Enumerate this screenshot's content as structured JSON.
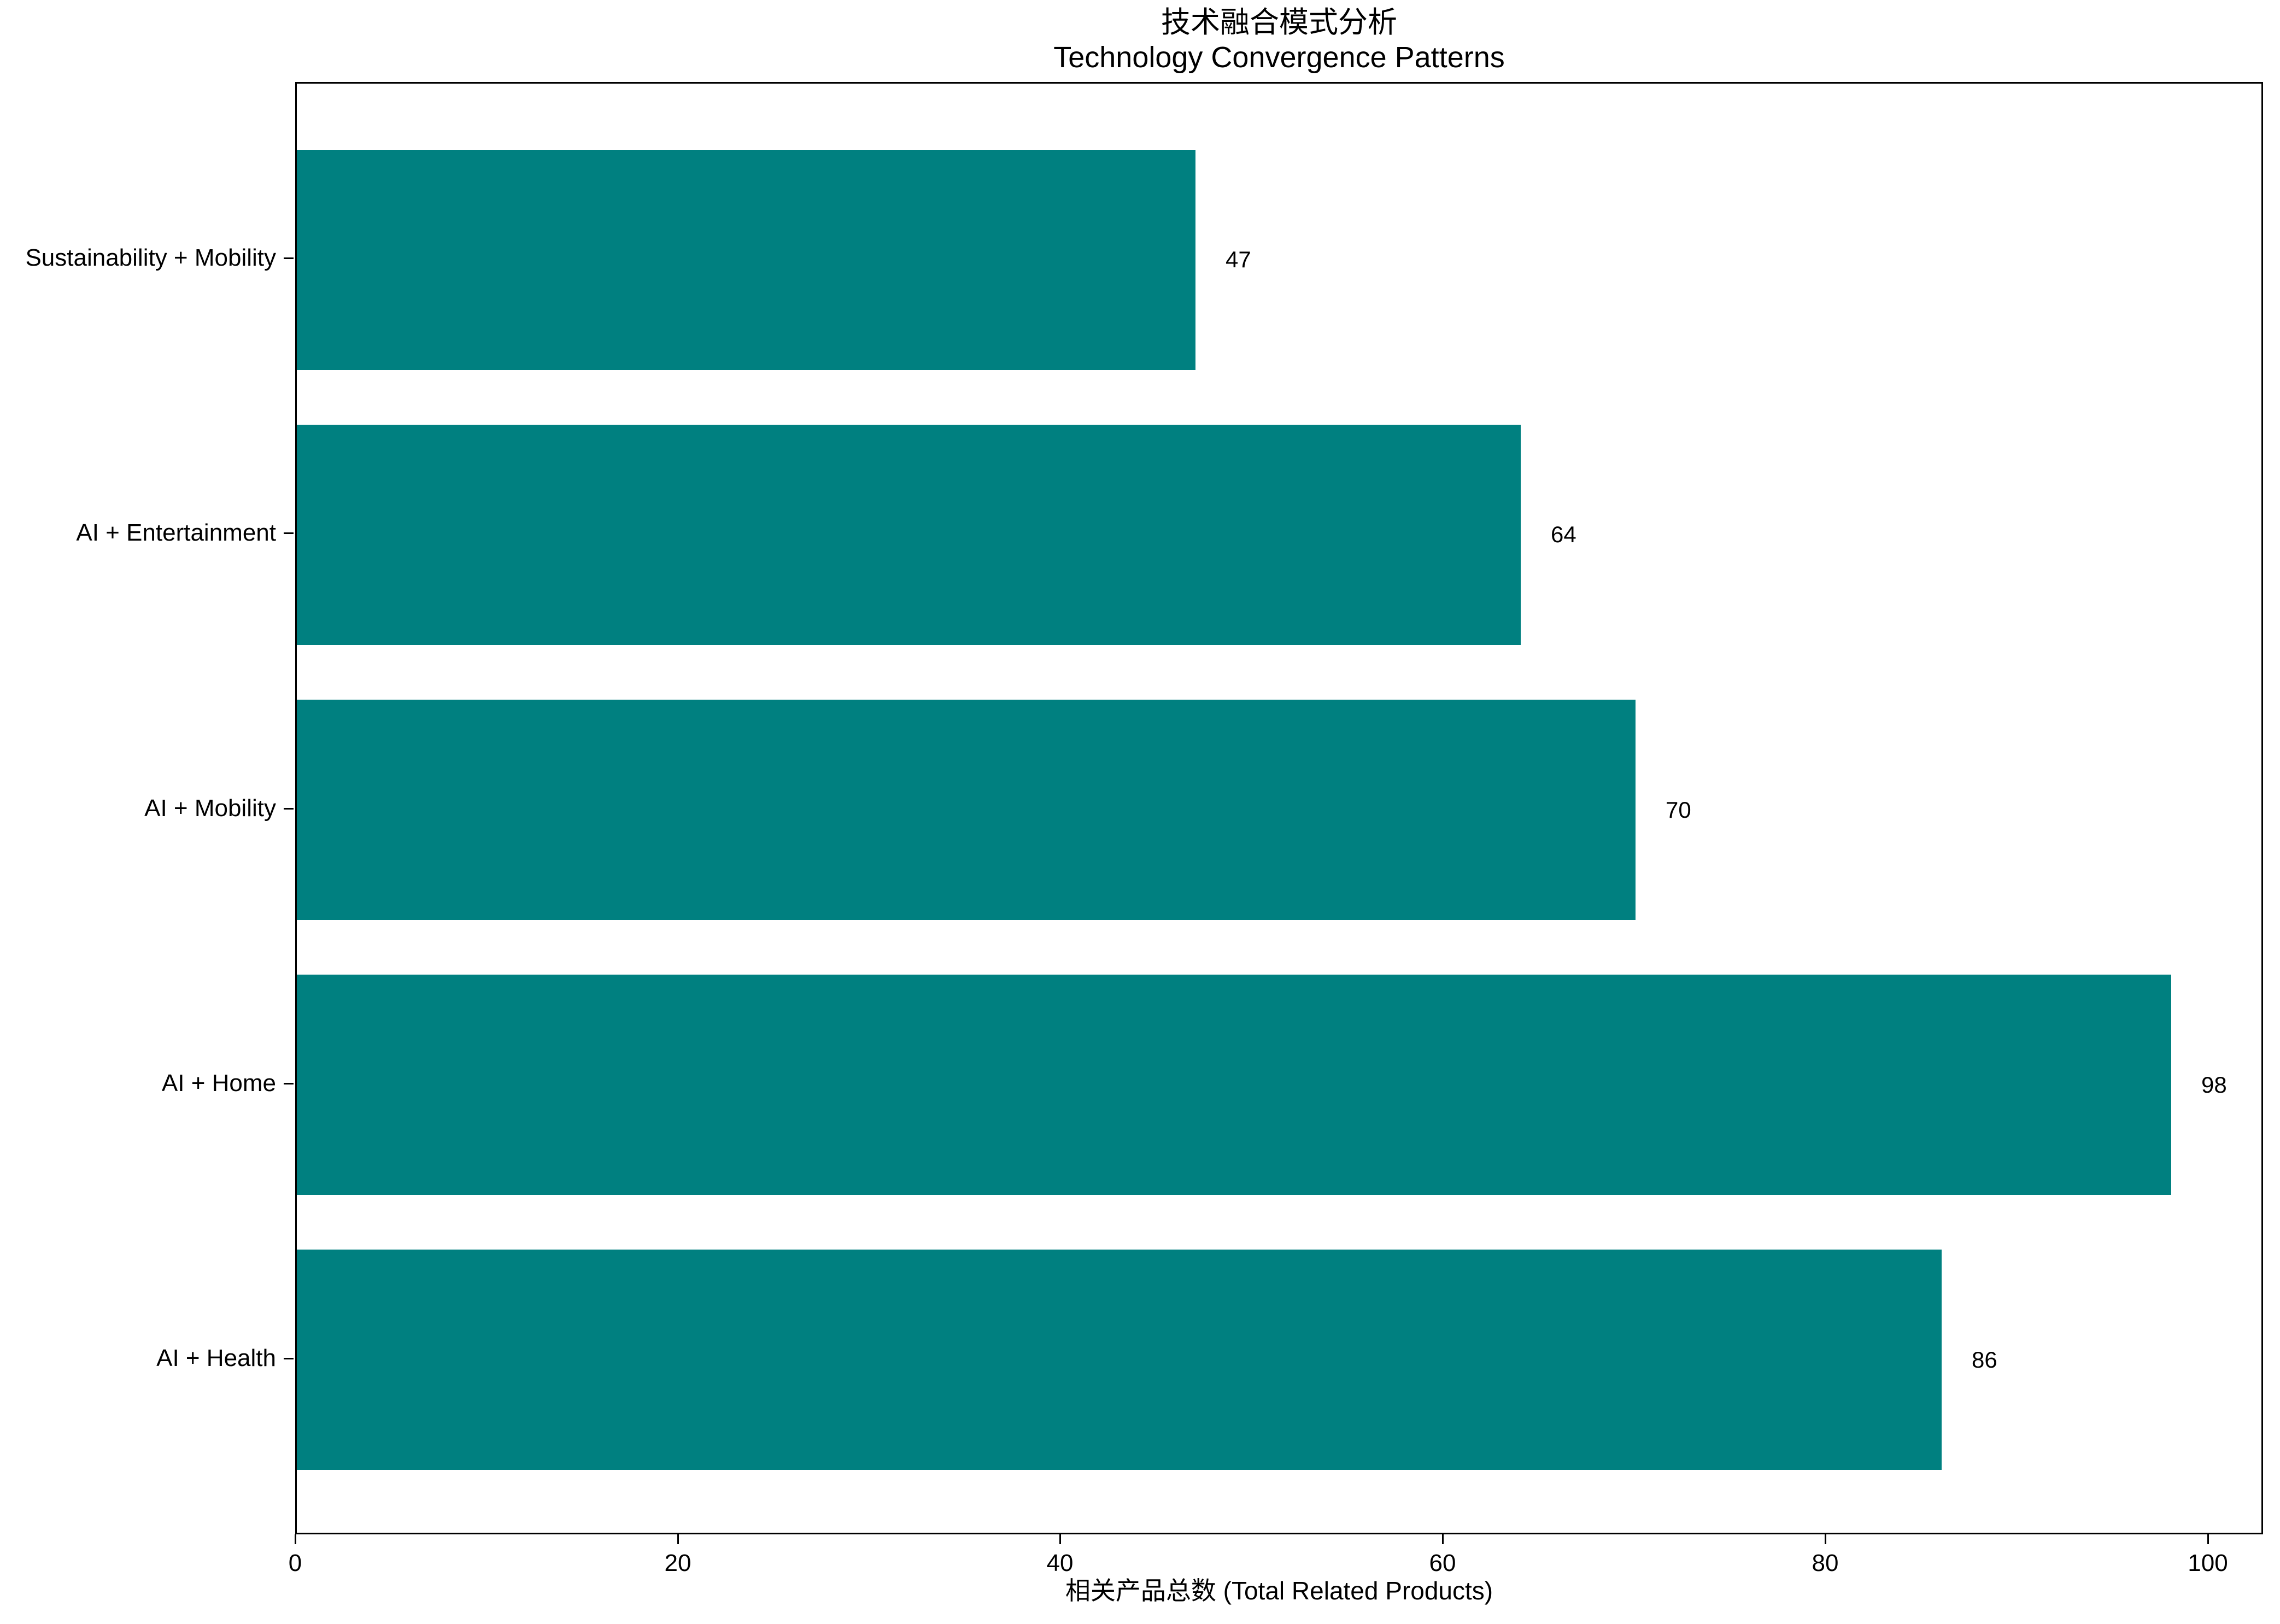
{
  "chart_data": {
    "type": "bar",
    "orientation": "horizontal",
    "title_zh": "技术融合模式分析",
    "title_en": "Technology Convergence Patterns",
    "categories_top_to_bottom": [
      "Sustainability + Mobility",
      "AI + Entertainment",
      "AI + Mobility",
      "AI + Home",
      "AI + Health"
    ],
    "values_top_to_bottom": [
      47,
      64,
      70,
      98,
      86
    ],
    "value_labels_top_to_bottom": [
      "47",
      "64",
      "70",
      "98",
      "86"
    ],
    "xlabel": "相关产品总数 (Total Related Products)",
    "x_ticks": [
      "0",
      "20",
      "40",
      "60",
      "80",
      "100"
    ],
    "x_tick_values": [
      0,
      20,
      40,
      60,
      80,
      100
    ],
    "xlim": [
      0,
      102.9
    ],
    "bar_color": "#008080",
    "grid": false,
    "legend": "none"
  }
}
